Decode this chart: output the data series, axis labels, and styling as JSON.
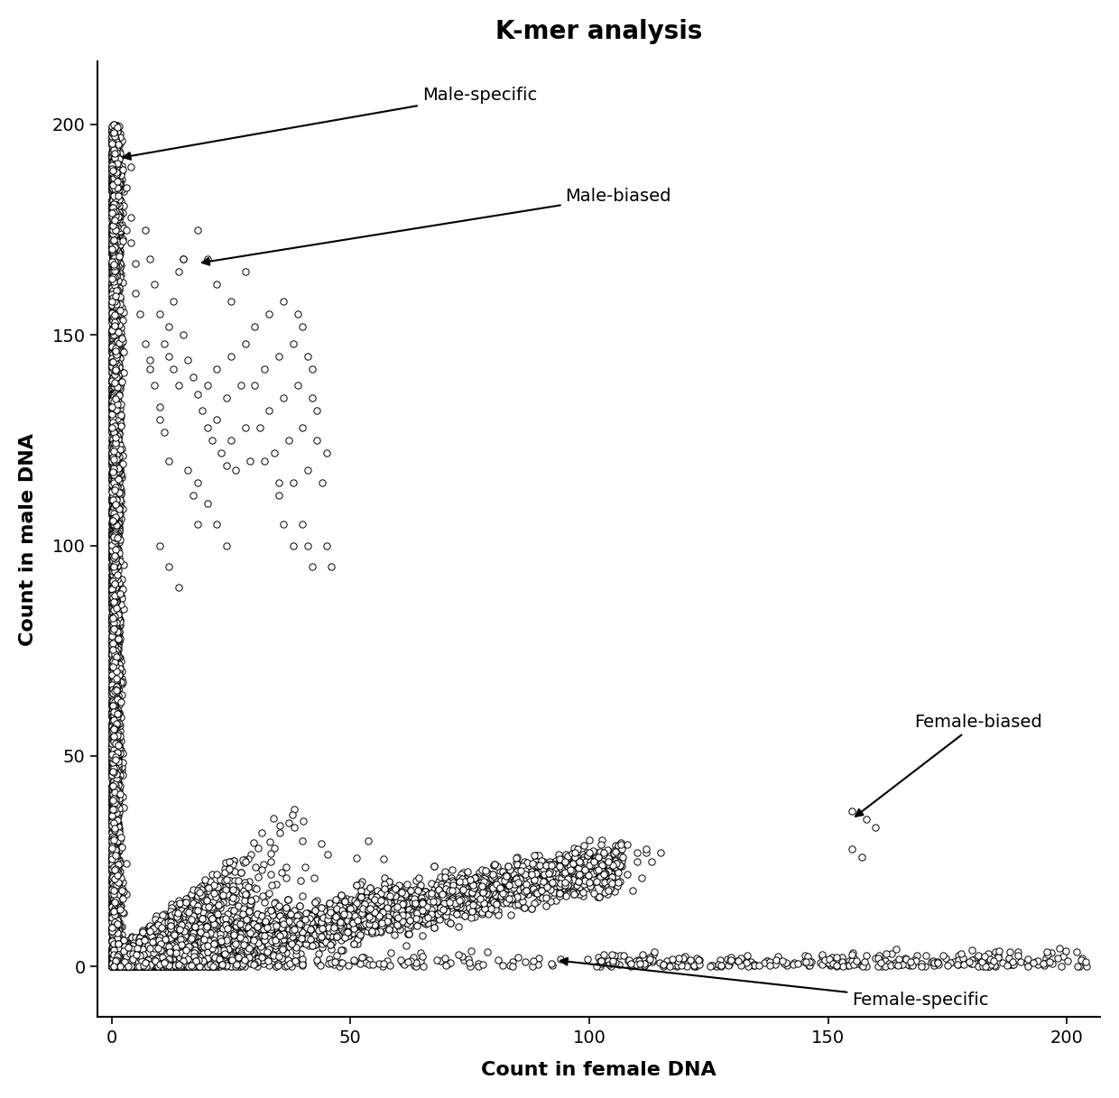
{
  "title": "K-mer analysis",
  "xlabel": "Count in female DNA",
  "ylabel": "Count in male DNA",
  "xlim": [
    -3,
    207
  ],
  "ylim": [
    -12,
    215
  ],
  "xticks": [
    0,
    50,
    100,
    150,
    200
  ],
  "yticks": [
    0,
    50,
    100,
    150,
    200
  ],
  "background_color": "#ffffff",
  "marker_color": "#000000",
  "marker_facecolor": "white",
  "marker_size": 28,
  "marker_linewidth": 0.7,
  "title_fontsize": 20,
  "label_fontsize": 16,
  "tick_fontsize": 14,
  "annotation_fontsize": 14,
  "seed": 42
}
